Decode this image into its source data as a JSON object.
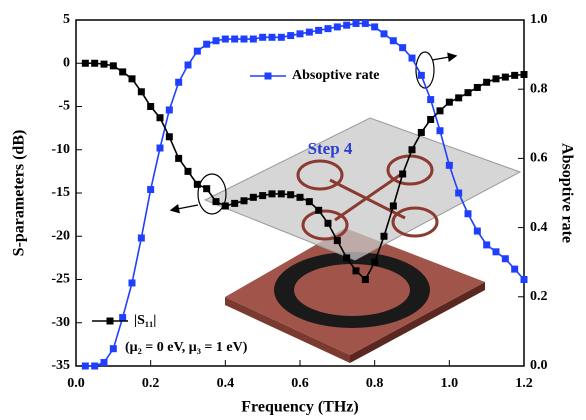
{
  "chart_data": {
    "type": "line",
    "x_label": "Frequency (THz)",
    "y_label": "S-parameters (dB)",
    "y2_label": "Absoptive rate",
    "annotation": "(μ₂ = 0 eV, μ₃ = 1 eV)",
    "inset_label": "Step 4",
    "x": [
      0.025,
      0.05,
      0.075,
      0.1,
      0.125,
      0.15,
      0.175,
      0.2,
      0.225,
      0.25,
      0.275,
      0.3,
      0.325,
      0.35,
      0.375,
      0.4,
      0.425,
      0.45,
      0.475,
      0.5,
      0.525,
      0.55,
      0.575,
      0.6,
      0.625,
      0.65,
      0.675,
      0.7,
      0.725,
      0.75,
      0.775,
      0.8,
      0.825,
      0.85,
      0.875,
      0.9,
      0.925,
      0.95,
      0.975,
      1.0,
      1.025,
      1.05,
      1.075,
      1.1,
      1.125,
      1.15,
      1.175,
      1.2
    ],
    "series": [
      {
        "name": "Absoptive rate",
        "color": "#1f3fff",
        "axis": "y2",
        "values": [
          0,
          0,
          0.01,
          0.05,
          0.14,
          0.24,
          0.37,
          0.51,
          0.63,
          0.74,
          0.82,
          0.87,
          0.91,
          0.93,
          0.94,
          0.945,
          0.945,
          0.945,
          0.945,
          0.95,
          0.95,
          0.95,
          0.955,
          0.96,
          0.965,
          0.97,
          0.975,
          0.98,
          0.985,
          0.99,
          0.99,
          0.98,
          0.96,
          0.94,
          0.92,
          0.89,
          0.84,
          0.77,
          0.68,
          0.58,
          0.5,
          0.44,
          0.39,
          0.35,
          0.33,
          0.31,
          0.28,
          0.25
        ]
      },
      {
        "name": "|S₁₁|",
        "color": "#000000",
        "values": [
          0,
          0,
          -0.1,
          -0.3,
          -1,
          -1.8,
          -3.3,
          -5,
          -6.3,
          -8.5,
          -11,
          -12.5,
          -14,
          -14.5,
          -16,
          -16.5,
          -16.2,
          -15.9,
          -15.5,
          -15.3,
          -15.1,
          -15.1,
          -15.2,
          -15.5,
          -16,
          -17,
          -18.5,
          -20.5,
          -22.5,
          -24,
          -25,
          -23,
          -20,
          -16.5,
          -12.8,
          -10,
          -8,
          -6.5,
          -5.5,
          -4.5,
          -4,
          -3.4,
          -2.8,
          -2.2,
          -1.8,
          -1.6,
          -1.4,
          -1.3
        ]
      }
    ],
    "xlim": [
      0,
      1.2
    ],
    "xticks": [
      {
        "value": 0,
        "label": "0.0"
      },
      0.2,
      0.4,
      0.6,
      0.8,
      {
        "value": 1,
        "label": "1.0"
      },
      1.2
    ],
    "ylim": [
      -35,
      5
    ],
    "yticks": [
      -35,
      -30,
      -25,
      -20,
      -15,
      -10,
      -5,
      0,
      5
    ],
    "y2lim": [
      0,
      1
    ],
    "y2ticks": [
      {
        "value": 0,
        "label": "0.0"
      },
      0.2,
      0.4,
      0.6,
      0.8,
      {
        "value": 1,
        "label": "1.0"
      }
    ]
  }
}
